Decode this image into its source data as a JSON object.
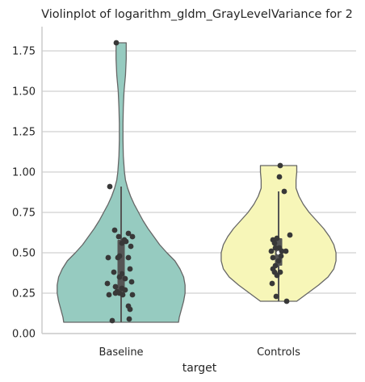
{
  "chart_data": {
    "type": "violin",
    "title": "Violinplot of logarithm_gldm_GrayLevelVariance for 2",
    "xlabel": "target",
    "ylabel": "",
    "categories": [
      "Baseline",
      "Controls"
    ],
    "ylim": [
      0.0,
      1.9
    ],
    "yticks": [
      0.0,
      0.25,
      0.5,
      0.75,
      1.0,
      1.25,
      1.5,
      1.75
    ],
    "ytick_labels": [
      "0.00",
      "0.25",
      "0.50",
      "0.75",
      "1.00",
      "1.25",
      "1.50",
      "1.75"
    ],
    "grid": true,
    "colors": {
      "Baseline": "#96cbc0",
      "Controls": "#f7f6b8",
      "outline": "#666666",
      "box": "#555555",
      "points": "#383838",
      "grid": "#d0d0d0",
      "spine": "#cccccc"
    },
    "violins": [
      {
        "name": "Baseline",
        "min": 0.07,
        "max": 1.8,
        "q1": 0.24,
        "median": 0.37,
        "q3": 0.58,
        "whisker_low": 0.07,
        "whisker_high": 0.91,
        "profile": [
          [
            0.07,
            0.79
          ],
          [
            0.1,
            0.8
          ],
          [
            0.15,
            0.83
          ],
          [
            0.2,
            0.86
          ],
          [
            0.25,
            0.88
          ],
          [
            0.3,
            0.88
          ],
          [
            0.35,
            0.86
          ],
          [
            0.4,
            0.81
          ],
          [
            0.45,
            0.74
          ],
          [
            0.5,
            0.63
          ],
          [
            0.55,
            0.53
          ],
          [
            0.6,
            0.45
          ],
          [
            0.65,
            0.37
          ],
          [
            0.7,
            0.3
          ],
          [
            0.75,
            0.24
          ],
          [
            0.8,
            0.18
          ],
          [
            0.85,
            0.13
          ],
          [
            0.9,
            0.09
          ],
          [
            0.95,
            0.06
          ],
          [
            1.0,
            0.045
          ],
          [
            1.1,
            0.03
          ],
          [
            1.2,
            0.025
          ],
          [
            1.3,
            0.025
          ],
          [
            1.4,
            0.03
          ],
          [
            1.5,
            0.04
          ],
          [
            1.6,
            0.06
          ],
          [
            1.7,
            0.07
          ],
          [
            1.8,
            0.07
          ]
        ],
        "points": [
          [
            -0.06,
            1.8
          ],
          [
            -0.14,
            0.91
          ],
          [
            -0.08,
            0.64
          ],
          [
            0.09,
            0.62
          ],
          [
            -0.03,
            0.6
          ],
          [
            0.14,
            0.6
          ],
          [
            0.04,
            0.58
          ],
          [
            0.06,
            0.57
          ],
          [
            0.01,
            0.56
          ],
          [
            0.12,
            0.54
          ],
          [
            -0.16,
            0.47
          ],
          [
            -0.04,
            0.47
          ],
          [
            -0.02,
            0.48
          ],
          [
            0.09,
            0.47
          ],
          [
            0.11,
            0.4
          ],
          [
            -0.09,
            0.38
          ],
          [
            0.01,
            0.37
          ],
          [
            -0.02,
            0.35
          ],
          [
            0.05,
            0.34
          ],
          [
            0.13,
            0.32
          ],
          [
            -0.17,
            0.31
          ],
          [
            -0.07,
            0.29
          ],
          [
            0.01,
            0.28
          ],
          [
            0.05,
            0.27
          ],
          [
            -0.05,
            0.26
          ],
          [
            -0.02,
            0.25
          ],
          [
            -0.07,
            0.25
          ],
          [
            -0.15,
            0.24
          ],
          [
            0.02,
            0.24
          ],
          [
            0.14,
            0.24
          ],
          [
            0.09,
            0.17
          ],
          [
            0.11,
            0.15
          ],
          [
            0.1,
            0.09
          ],
          [
            -0.11,
            0.08
          ]
        ]
      },
      {
        "name": "Controls",
        "min": 0.2,
        "max": 1.04,
        "q1": 0.42,
        "median": 0.5,
        "q3": 0.59,
        "whisker_low": 0.2,
        "whisker_high": 0.88,
        "profile": [
          [
            0.2,
            0.25
          ],
          [
            0.25,
            0.4
          ],
          [
            0.3,
            0.55
          ],
          [
            0.35,
            0.68
          ],
          [
            0.4,
            0.76
          ],
          [
            0.45,
            0.79
          ],
          [
            0.5,
            0.79
          ],
          [
            0.55,
            0.76
          ],
          [
            0.6,
            0.7
          ],
          [
            0.65,
            0.62
          ],
          [
            0.7,
            0.52
          ],
          [
            0.75,
            0.42
          ],
          [
            0.8,
            0.34
          ],
          [
            0.85,
            0.28
          ],
          [
            0.9,
            0.24
          ],
          [
            0.95,
            0.24
          ],
          [
            1.0,
            0.25
          ],
          [
            1.04,
            0.25
          ]
        ],
        "points": [
          [
            0.02,
            1.04
          ],
          [
            0.01,
            0.97
          ],
          [
            0.07,
            0.88
          ],
          [
            0.14,
            0.61
          ],
          [
            -0.07,
            0.58
          ],
          [
            -0.05,
            0.56
          ],
          [
            -0.02,
            0.59
          ],
          [
            -0.04,
            0.53
          ],
          [
            0.01,
            0.53
          ],
          [
            -0.09,
            0.51
          ],
          [
            0.04,
            0.51
          ],
          [
            0.09,
            0.51
          ],
          [
            0.03,
            0.48
          ],
          [
            -0.07,
            0.47
          ],
          [
            0.0,
            0.45
          ],
          [
            -0.04,
            0.42
          ],
          [
            -0.07,
            0.4
          ],
          [
            -0.05,
            0.38
          ],
          [
            0.02,
            0.38
          ],
          [
            -0.02,
            0.36
          ],
          [
            -0.08,
            0.31
          ],
          [
            -0.03,
            0.23
          ],
          [
            0.1,
            0.2
          ]
        ]
      }
    ]
  }
}
